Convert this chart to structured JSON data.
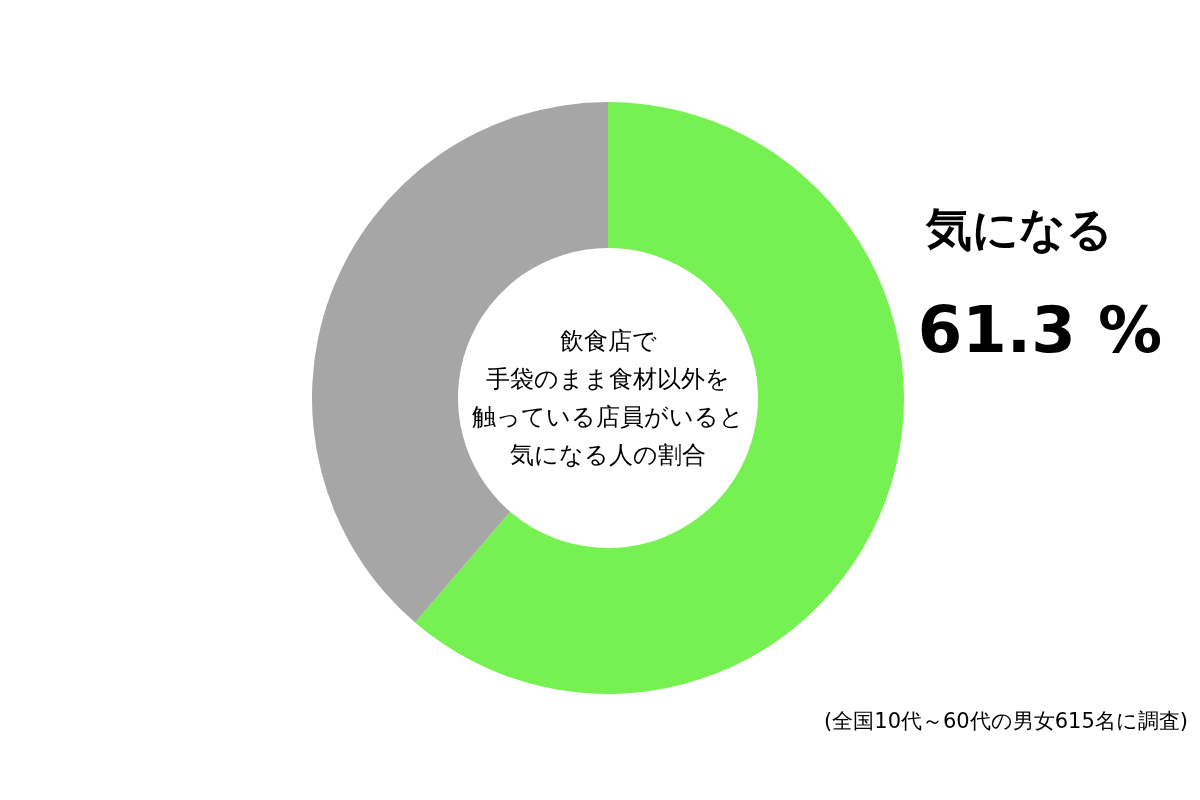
{
  "chart_data": {
    "type": "donut",
    "categories": [
      "気になる",
      null
    ],
    "values": [
      61.3,
      38.7
    ],
    "colors": [
      "#76f152",
      "#a6a6a6"
    ],
    "value_labels": [
      "61.3 %",
      null
    ],
    "annotations": [
      "飲食店で",
      "手袋のまま食材以外を",
      "触っている店員がいると",
      "気になる人の割合",
      "(全国10代～60代の男女615名に調査)"
    ]
  }
}
